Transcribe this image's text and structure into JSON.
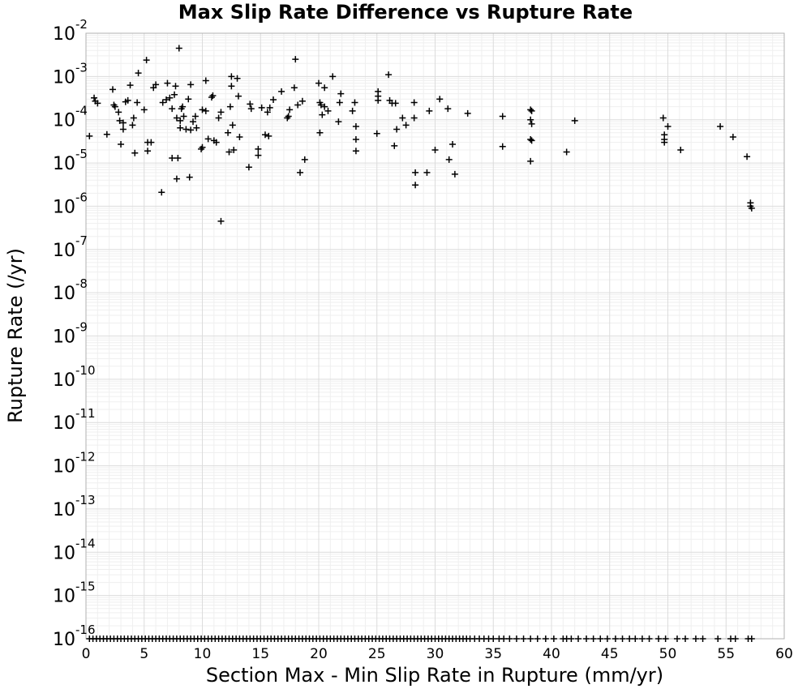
{
  "chart_data": {
    "type": "scatter",
    "title": "Max Slip Rate Difference vs Rupture Rate",
    "xlabel": "Section Max - Min Slip Rate in Rupture (mm/yr)",
    "ylabel": "Rupture Rate (/yr)",
    "xlim": [
      0,
      60
    ],
    "ylim": [
      1e-16,
      0.01
    ],
    "y_scale": "log",
    "grid": true,
    "marker": "plus",
    "color": "#000000",
    "x_ticks": [
      "0",
      "5",
      "10",
      "15",
      "20",
      "25",
      "30",
      "35",
      "40",
      "45",
      "50",
      "55",
      "60"
    ],
    "y_ticks": [
      {
        "base": "10",
        "exp": "-16"
      },
      {
        "base": "10",
        "exp": "-15"
      },
      {
        "base": "10",
        "exp": "-14"
      },
      {
        "base": "10",
        "exp": "-13"
      },
      {
        "base": "10",
        "exp": "-12"
      },
      {
        "base": "10",
        "exp": "-11"
      },
      {
        "base": "10",
        "exp": "-10"
      },
      {
        "base": "10",
        "exp": "-9"
      },
      {
        "base": "10",
        "exp": "-8"
      },
      {
        "base": "10",
        "exp": "-7"
      },
      {
        "base": "10",
        "exp": "-6"
      },
      {
        "base": "10",
        "exp": "-5"
      },
      {
        "base": "10",
        "exp": "-4"
      },
      {
        "base": "10",
        "exp": "-3"
      },
      {
        "base": "10",
        "exp": "-2"
      }
    ],
    "points": [
      [
        0.3,
        4.2e-05
      ],
      [
        0.7,
        0.00032
      ],
      [
        0.8,
        0.00027
      ],
      [
        1.0,
        0.00024
      ],
      [
        1.8,
        4.6e-05
      ],
      [
        2.3,
        0.0005
      ],
      [
        2.4,
        0.00022
      ],
      [
        2.5,
        0.0002
      ],
      [
        2.8,
        0.00015
      ],
      [
        2.9,
        9.5e-05
      ],
      [
        3.0,
        2.7e-05
      ],
      [
        3.2,
        8.5e-05
      ],
      [
        3.2,
        6e-05
      ],
      [
        3.4,
        0.00026
      ],
      [
        3.6,
        0.00028
      ],
      [
        3.8,
        0.00063
      ],
      [
        4.0,
        7.5e-05
      ],
      [
        4.1,
        0.00011
      ],
      [
        4.2,
        1.7e-05
      ],
      [
        4.4,
        0.00025
      ],
      [
        4.5,
        0.0012
      ],
      [
        5.0,
        0.00017
      ],
      [
        5.2,
        0.0024
      ],
      [
        5.3,
        3e-05
      ],
      [
        5.3,
        1.9e-05
      ],
      [
        5.6,
        3e-05
      ],
      [
        5.8,
        0.00055
      ],
      [
        6.0,
        0.00065
      ],
      [
        6.5,
        2.1e-06
      ],
      [
        6.6,
        0.00025
      ],
      [
        6.9,
        0.00029
      ],
      [
        7.0,
        0.0007
      ],
      [
        7.2,
        0.00032
      ],
      [
        7.4,
        0.00018
      ],
      [
        7.4,
        1.3e-05
      ],
      [
        7.6,
        0.00038
      ],
      [
        7.7,
        0.0006
      ],
      [
        7.8,
        4.3e-06
      ],
      [
        7.8,
        0.00011
      ],
      [
        7.9,
        1.3e-05
      ],
      [
        8.0,
        0.0045
      ],
      [
        8.1,
        9.5e-05
      ],
      [
        8.1,
        6.5e-05
      ],
      [
        8.2,
        0.00018
      ],
      [
        8.3,
        0.0002
      ],
      [
        8.4,
        0.00012
      ],
      [
        8.6,
        6e-05
      ],
      [
        8.8,
        0.0003
      ],
      [
        8.9,
        4.7e-06
      ],
      [
        9.0,
        0.00065
      ],
      [
        9.0,
        5.8e-05
      ],
      [
        9.2,
        9e-05
      ],
      [
        9.4,
        0.00012
      ],
      [
        9.5,
        6.5e-05
      ],
      [
        9.9,
        2.1e-05
      ],
      [
        10.0,
        2.3e-05
      ],
      [
        10.0,
        0.00017
      ],
      [
        10.3,
        0.00016
      ],
      [
        10.3,
        0.0008
      ],
      [
        10.5,
        3.6e-05
      ],
      [
        10.8,
        0.00033
      ],
      [
        10.9,
        0.00036
      ],
      [
        11.0,
        3.3e-05
      ],
      [
        11.2,
        3e-05
      ],
      [
        11.4,
        0.00011
      ],
      [
        11.6,
        0.00015
      ],
      [
        11.6,
        4.5e-07
      ],
      [
        12.2,
        5e-05
      ],
      [
        12.3,
        1.8e-05
      ],
      [
        12.4,
        0.0002
      ],
      [
        12.5,
        0.001
      ],
      [
        12.5,
        0.0006
      ],
      [
        12.6,
        7.5e-05
      ],
      [
        12.7,
        2e-05
      ],
      [
        13.0,
        0.0009
      ],
      [
        13.1,
        0.00035
      ],
      [
        13.2,
        4e-05
      ],
      [
        14.0,
        8e-06
      ],
      [
        14.1,
        0.00023
      ],
      [
        14.2,
        0.00018
      ],
      [
        14.8,
        2.1e-05
      ],
      [
        14.8,
        1.5e-05
      ],
      [
        15.1,
        0.00019
      ],
      [
        15.4,
        4.5e-05
      ],
      [
        15.6,
        0.00015
      ],
      [
        15.7,
        4.2e-05
      ],
      [
        15.8,
        0.00019
      ],
      [
        16.1,
        0.00029
      ],
      [
        16.8,
        0.00045
      ],
      [
        17.3,
        0.00011
      ],
      [
        17.4,
        0.00012
      ],
      [
        17.5,
        0.00017
      ],
      [
        17.9,
        0.00055
      ],
      [
        18.0,
        0.0025
      ],
      [
        18.2,
        0.00022
      ],
      [
        18.4,
        6e-06
      ],
      [
        18.6,
        0.00027
      ],
      [
        18.8,
        1.2e-05
      ],
      [
        20.0,
        0.0007
      ],
      [
        20.1,
        5e-05
      ],
      [
        20.1,
        0.00025
      ],
      [
        20.2,
        0.00022
      ],
      [
        20.3,
        0.00013
      ],
      [
        20.5,
        0.0002
      ],
      [
        20.5,
        0.00055
      ],
      [
        20.8,
        0.00016
      ],
      [
        21.2,
        0.001
      ],
      [
        21.7,
        9e-05
      ],
      [
        21.8,
        0.00025
      ],
      [
        21.9,
        0.0004
      ],
      [
        22.9,
        0.00016
      ],
      [
        23.1,
        0.00025
      ],
      [
        23.2,
        7e-05
      ],
      [
        23.2,
        3.5e-05
      ],
      [
        23.2,
        1.9e-05
      ],
      [
        25.0,
        4.8e-05
      ],
      [
        25.1,
        0.00028
      ],
      [
        25.1,
        0.00035
      ],
      [
        25.1,
        0.00045
      ],
      [
        26.0,
        0.0011
      ],
      [
        26.1,
        0.00028
      ],
      [
        26.3,
        0.00024
      ],
      [
        26.5,
        2.5e-05
      ],
      [
        26.6,
        0.00024
      ],
      [
        26.7,
        6e-05
      ],
      [
        27.2,
        0.00011
      ],
      [
        27.5,
        7.5e-05
      ],
      [
        28.2,
        0.00025
      ],
      [
        28.2,
        0.00011
      ],
      [
        28.3,
        3.1e-06
      ],
      [
        28.3,
        6e-06
      ],
      [
        29.3,
        6e-06
      ],
      [
        29.5,
        0.00016
      ],
      [
        30.0,
        2e-05
      ],
      [
        30.4,
        0.0003
      ],
      [
        31.1,
        0.00018
      ],
      [
        31.2,
        1.2e-05
      ],
      [
        31.5,
        2.7e-05
      ],
      [
        31.7,
        5.5e-06
      ],
      [
        32.8,
        0.00014
      ],
      [
        35.8,
        0.00012
      ],
      [
        35.8,
        2.4e-05
      ],
      [
        38.2,
        0.00017
      ],
      [
        38.3,
        0.00016
      ],
      [
        38.2,
        0.0001
      ],
      [
        38.3,
        8e-05
      ],
      [
        38.2,
        3.5e-05
      ],
      [
        38.3,
        3.3e-05
      ],
      [
        38.2,
        1.1e-05
      ],
      [
        41.3,
        1.8e-05
      ],
      [
        42.0,
        9.5e-05
      ],
      [
        49.6,
        0.00011
      ],
      [
        49.7,
        4.5e-05
      ],
      [
        49.7,
        3.5e-05
      ],
      [
        49.7,
        3e-05
      ],
      [
        50.0,
        7e-05
      ],
      [
        51.1,
        2e-05
      ],
      [
        54.5,
        7e-05
      ],
      [
        55.6,
        4e-05
      ],
      [
        56.8,
        1.4e-05
      ],
      [
        57.1,
        1.2e-06
      ],
      [
        57.1,
        1e-06
      ],
      [
        57.2,
        9e-07
      ]
    ],
    "floor_points_x": [
      0.3,
      0.6,
      0.9,
      1.2,
      1.5,
      1.8,
      2.1,
      2.4,
      2.7,
      3.0,
      3.3,
      3.6,
      3.9,
      4.2,
      4.5,
      4.8,
      5.1,
      5.4,
      5.7,
      6.0,
      6.3,
      6.6,
      6.9,
      7.2,
      7.5,
      7.8,
      8.1,
      8.4,
      8.7,
      9.0,
      9.3,
      9.6,
      9.9,
      10.2,
      10.5,
      10.8,
      11.1,
      11.4,
      11.7,
      12.0,
      12.3,
      12.6,
      12.9,
      13.2,
      13.5,
      13.8,
      14.1,
      14.4,
      14.7,
      15.0,
      15.3,
      15.6,
      15.9,
      16.2,
      16.5,
      16.8,
      17.1,
      17.4,
      17.7,
      18.0,
      18.3,
      18.6,
      18.9,
      19.2,
      19.5,
      19.8,
      20.1,
      20.4,
      20.7,
      21.0,
      21.3,
      21.6,
      21.9,
      22.2,
      22.5,
      22.8,
      23.1,
      23.4,
      23.7,
      24.0,
      24.3,
      24.6,
      24.9,
      25.2,
      25.5,
      25.8,
      26.1,
      26.4,
      26.7,
      27.0,
      27.3,
      27.6,
      27.9,
      28.2,
      28.5,
      28.8,
      29.1,
      29.4,
      29.7,
      30.0,
      30.3,
      30.6,
      30.9,
      31.2,
      31.5,
      31.8,
      32.1,
      32.4,
      32.7,
      33.0,
      33.4,
      33.8,
      34.2,
      34.6,
      35.0,
      35.5,
      35.9,
      36.4,
      37.0,
      37.6,
      38.2,
      38.8,
      39.5,
      40.2,
      41.0,
      41.3,
      41.7,
      42.3,
      43.0,
      43.6,
      44.2,
      44.8,
      45.5,
      46.1,
      46.7,
      47.2,
      47.8,
      48.4,
      49.2,
      49.8,
      50.8,
      51.5,
      52.4,
      53.0,
      54.3,
      55.4,
      55.8,
      56.9,
      57.2
    ]
  }
}
